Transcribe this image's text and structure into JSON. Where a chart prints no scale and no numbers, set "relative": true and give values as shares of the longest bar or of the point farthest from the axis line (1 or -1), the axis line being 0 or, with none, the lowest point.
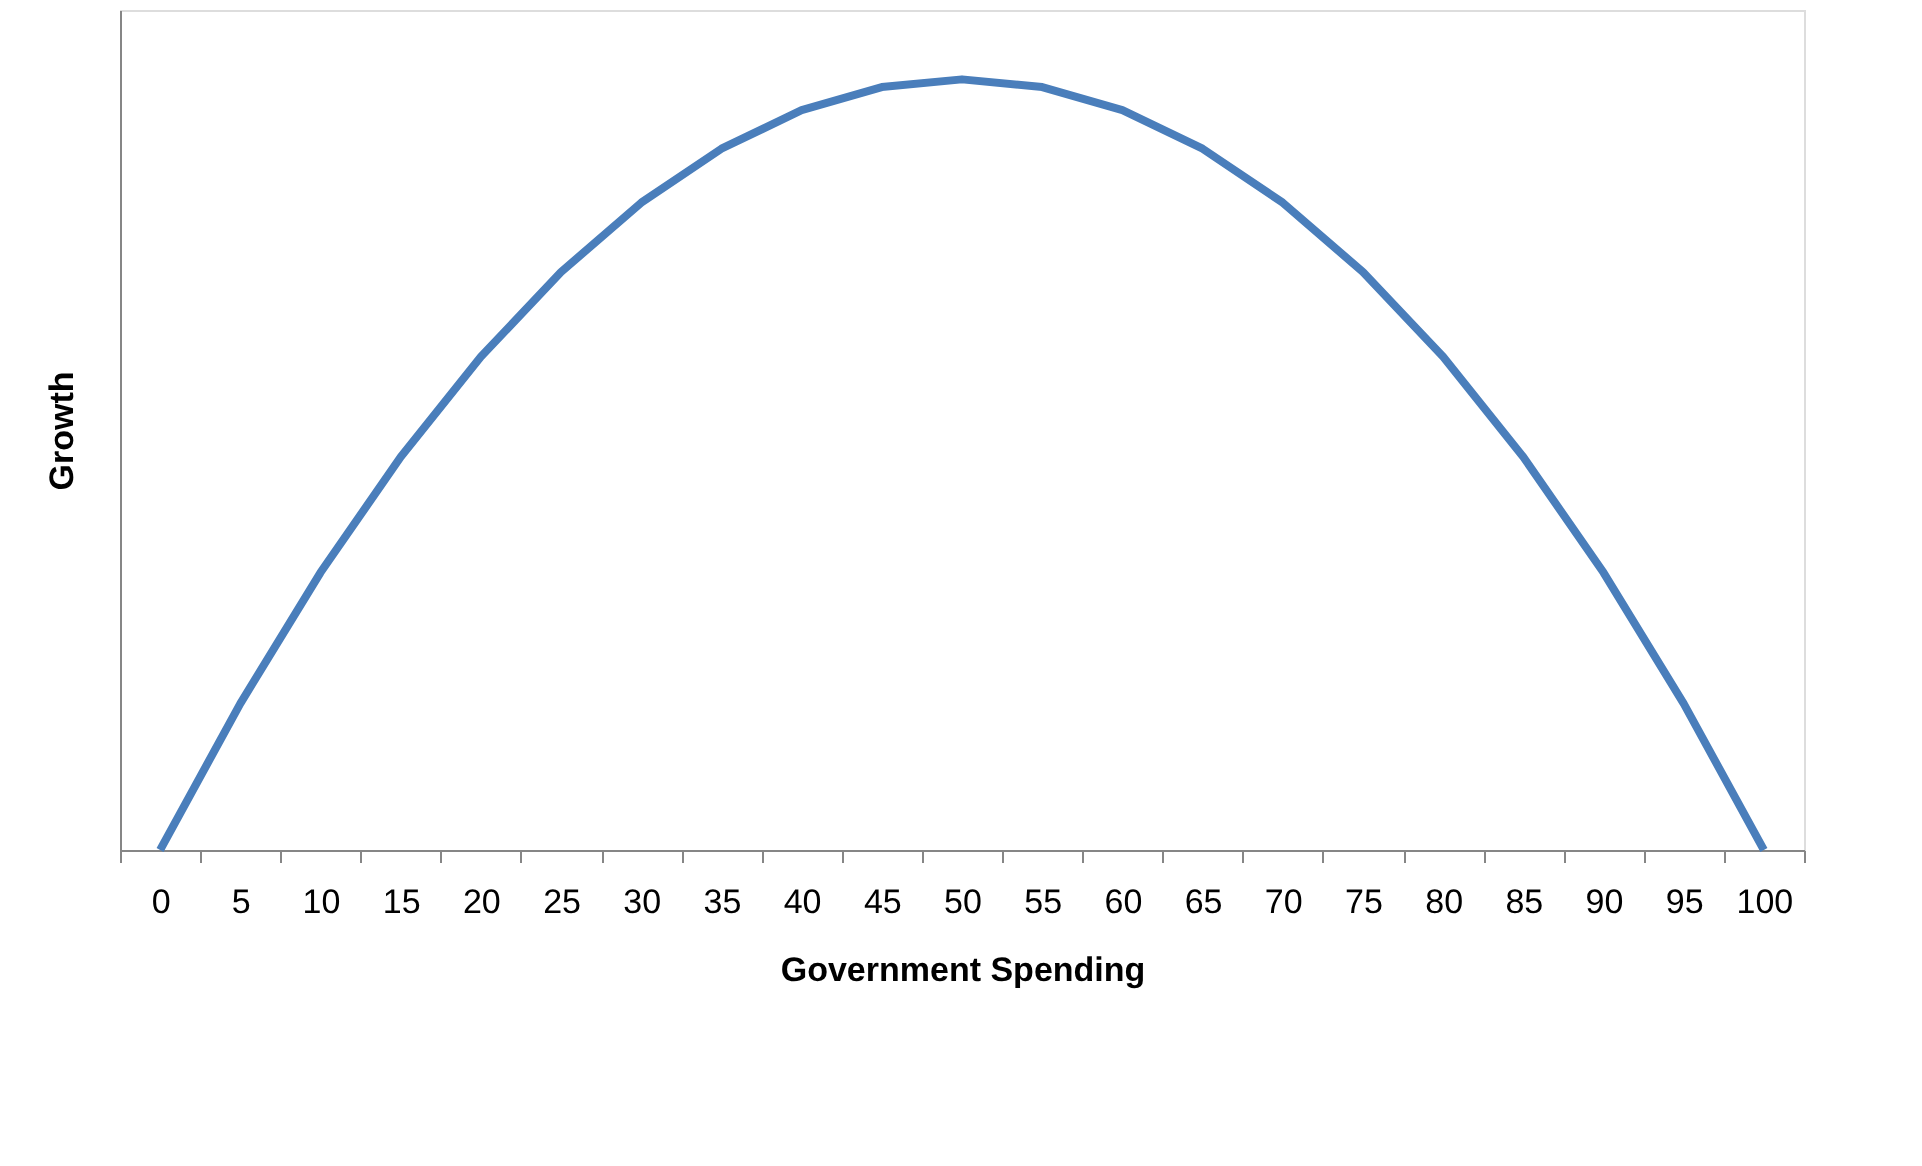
{
  "chart_data": {
    "type": "line",
    "xlabel": "Government Spending",
    "ylabel": "Growth",
    "relative": true,
    "grid": false,
    "marker": "none",
    "line_style": "solid",
    "categories": [
      "0",
      "5",
      "10",
      "15",
      "20",
      "25",
      "30",
      "35",
      "40",
      "45",
      "50",
      "55",
      "60",
      "65",
      "70",
      "75",
      "80",
      "85",
      "90",
      "95",
      "100"
    ],
    "series": [
      {
        "color": "#4a7ebb",
        "values": [
          0,
          0.19,
          0.36,
          0.51,
          0.64,
          0.75,
          0.84,
          0.91,
          0.96,
          0.99,
          1,
          0.99,
          0.96,
          0.91,
          0.84,
          0.75,
          0.64,
          0.51,
          0.36,
          0.19,
          0
        ]
      }
    ]
  }
}
